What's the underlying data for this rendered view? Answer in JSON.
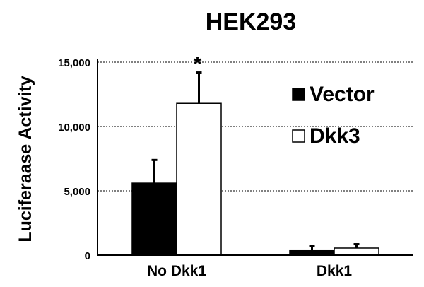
{
  "chart_data": {
    "type": "bar",
    "title": "HEK293",
    "ylabel": "Luciferaase Activity",
    "xlabel": "",
    "ylim": [
      0,
      15000
    ],
    "yticks": [
      0,
      5000,
      10000,
      15000
    ],
    "ytick_labels": [
      "0",
      "5,000",
      "10,000",
      "15,000"
    ],
    "categories": [
      "No Dkk1",
      "Dkk1"
    ],
    "series": [
      {
        "name": "Vector",
        "values": [
          5600,
          400
        ],
        "errors": [
          1800,
          300
        ],
        "color": "#000000"
      },
      {
        "name": "Dkk3",
        "values": [
          11800,
          550
        ],
        "errors": [
          2400,
          300
        ],
        "color": "#ffffff"
      }
    ],
    "grid": "horizontal-dashed",
    "legend_position": "right",
    "annotations": [
      {
        "text": "*",
        "category": "No Dkk1",
        "series": "Dkk3"
      }
    ]
  }
}
